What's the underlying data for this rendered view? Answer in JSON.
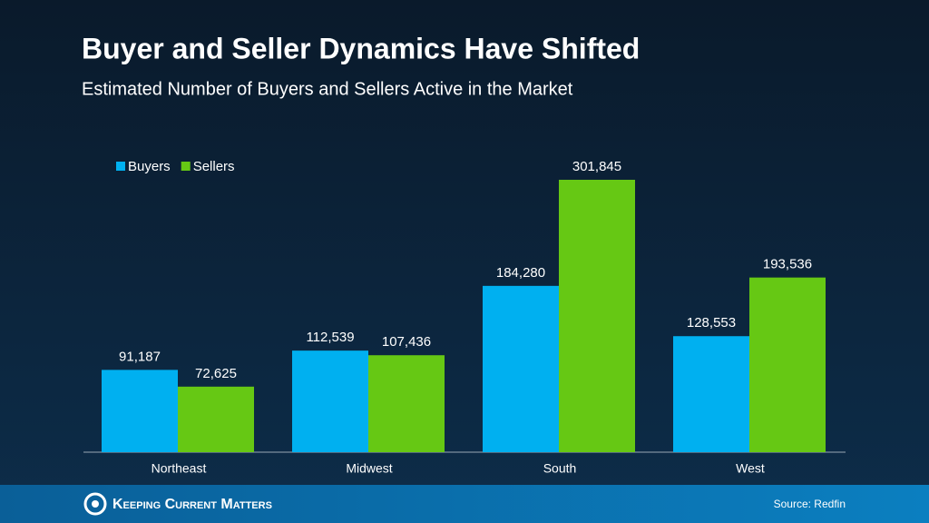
{
  "chart_data": {
    "type": "bar",
    "title": "Buyer and Seller Dynamics Have Shifted",
    "subtitle": "Estimated Number of Buyers and Sellers Active in the Market",
    "categories": [
      "Northeast",
      "Midwest",
      "South",
      "West"
    ],
    "series": [
      {
        "name": "Buyers",
        "color": "#00b0f0",
        "values": [
          91187,
          112539,
          184280,
          128553
        ],
        "value_labels": [
          "91,187",
          "112,539",
          "184,280",
          "128,553"
        ]
      },
      {
        "name": "Sellers",
        "color": "#66c814",
        "values": [
          72625,
          107436,
          301845,
          193536
        ],
        "value_labels": [
          "72,625",
          "107,436",
          "301,845",
          "193,536"
        ]
      }
    ],
    "legend": "top-left"
  },
  "footer": {
    "brand": "Keeping Current Matters",
    "source": "Source: Redfin"
  }
}
